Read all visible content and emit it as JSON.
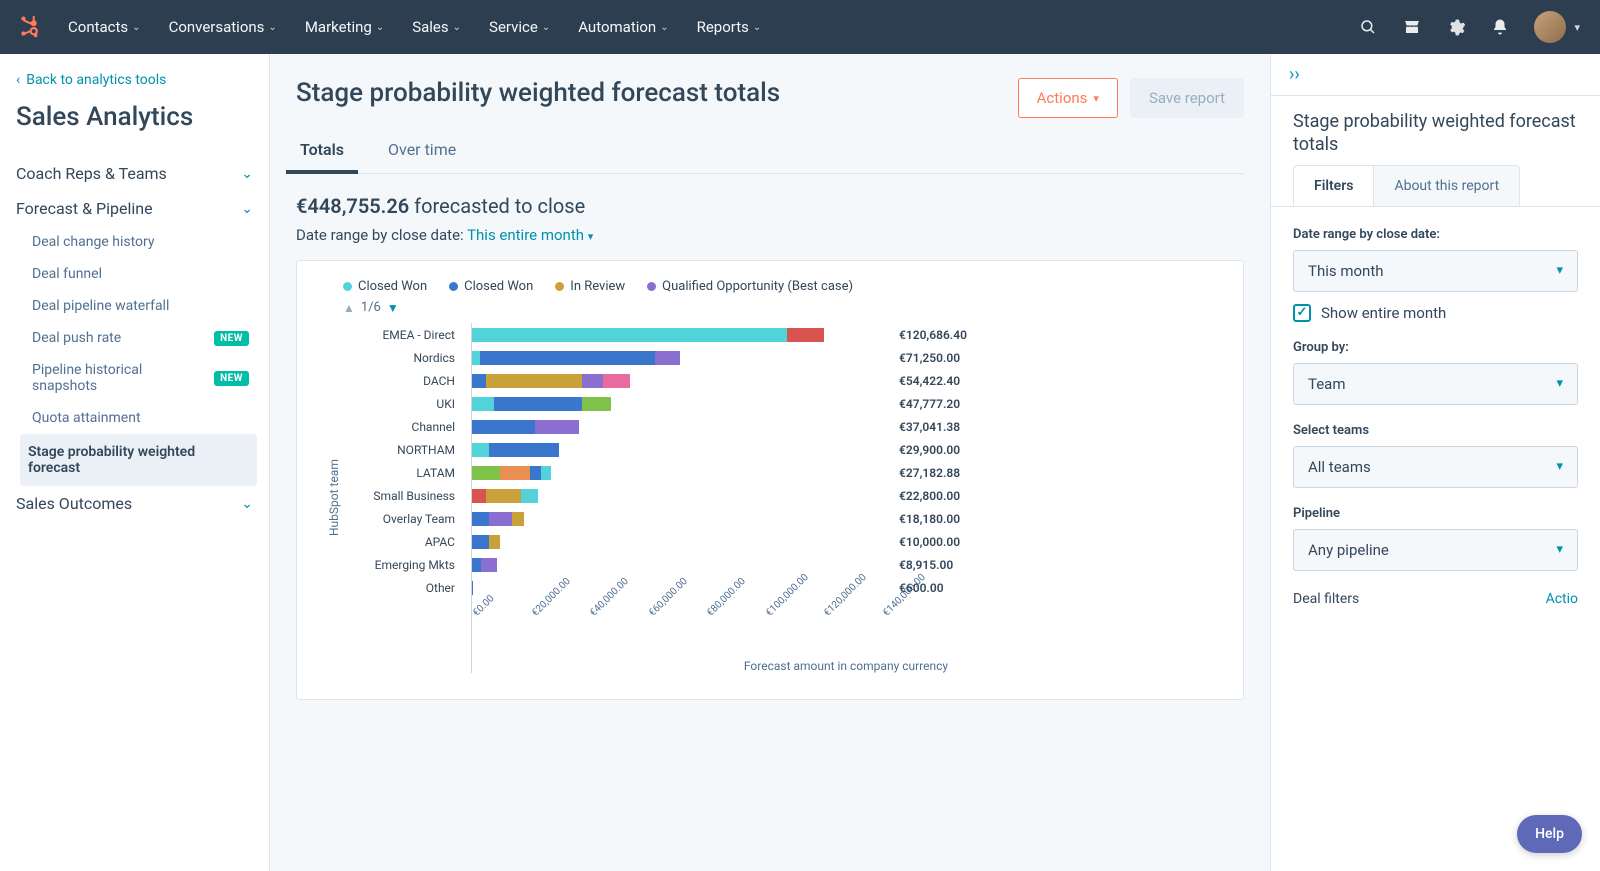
{
  "topnav": {
    "items": [
      "Contacts",
      "Conversations",
      "Marketing",
      "Sales",
      "Service",
      "Automation",
      "Reports"
    ]
  },
  "sidebar": {
    "back_label": "Back to analytics tools",
    "page_title": "Sales Analytics",
    "groups": [
      {
        "label": "Coach Reps & Teams",
        "open": false,
        "items": []
      },
      {
        "label": "Forecast & Pipeline",
        "open": true,
        "items": [
          {
            "label": "Deal change history",
            "new": false,
            "active": false
          },
          {
            "label": "Deal funnel",
            "new": false,
            "active": false
          },
          {
            "label": "Deal pipeline waterfall",
            "new": false,
            "active": false
          },
          {
            "label": "Deal push rate",
            "new": true,
            "active": false
          },
          {
            "label": "Pipeline historical snapshots",
            "new": true,
            "active": false
          },
          {
            "label": "Quota attainment",
            "new": false,
            "active": false
          },
          {
            "label": "Stage probability weighted forecast",
            "new": false,
            "active": true
          }
        ]
      },
      {
        "label": "Sales Outcomes",
        "open": false,
        "items": []
      }
    ],
    "new_badge_text": "NEW"
  },
  "main": {
    "report_title": "Stage probability weighted forecast totals",
    "actions_btn": "Actions",
    "save_btn": "Save report",
    "tabs": [
      {
        "label": "Totals",
        "active": true
      },
      {
        "label": "Over time",
        "active": false
      }
    ],
    "summary_value": "€448,755.26",
    "summary_suffix": " forecasted to close",
    "date_label": "Date range by close date: ",
    "date_value": "This entire month"
  },
  "chart": {
    "legend": [
      {
        "label": "Closed Won",
        "color": "#51d3d9"
      },
      {
        "label": "Closed Won",
        "color": "#3a77cc"
      },
      {
        "label": "In Review",
        "color": "#c9a13a"
      },
      {
        "label": "Qualified Opportunity (Best case)",
        "color": "#8a6fd1"
      }
    ],
    "pager": "1/6",
    "y_axis_label": "HubSpot team",
    "x_axis_label": "Forecast amount in company currency",
    "x_max": 140000,
    "x_ticks": [
      "€0.00",
      "€20,000.00",
      "€40,000.00",
      "€60,000.00",
      "€80,000.00",
      "€100,000.00",
      "€120,000.00",
      "€140,000.00"
    ],
    "colors": {
      "teal": "#51d3d9",
      "blue": "#3a77cc",
      "gold": "#c9a13a",
      "purple": "#8a6fd1",
      "orange": "#e98f53",
      "red": "#d9534f",
      "green": "#7fc24a",
      "pink": "#e76aa1"
    },
    "rows": [
      {
        "label": "EMEA - Direct",
        "value_label": "€120,686.40",
        "segments": [
          {
            "c": "teal",
            "v": 108000
          },
          {
            "c": "red",
            "v": 12686
          }
        ]
      },
      {
        "label": "Nordics",
        "value_label": "€71,250.00",
        "segments": [
          {
            "c": "teal",
            "v": 3000
          },
          {
            "c": "blue",
            "v": 60000
          },
          {
            "c": "purple",
            "v": 8250
          }
        ]
      },
      {
        "label": "DACH",
        "value_label": "€54,422.40",
        "segments": [
          {
            "c": "blue",
            "v": 5000
          },
          {
            "c": "gold",
            "v": 33000
          },
          {
            "c": "purple",
            "v": 7000
          },
          {
            "c": "pink",
            "v": 9422
          }
        ]
      },
      {
        "label": "UKI",
        "value_label": "€47,777.20",
        "segments": [
          {
            "c": "teal",
            "v": 8000
          },
          {
            "c": "blue",
            "v": 30000
          },
          {
            "c": "green",
            "v": 9777
          }
        ]
      },
      {
        "label": "Channel",
        "value_label": "€37,041.38",
        "segments": [
          {
            "c": "blue",
            "v": 22000
          },
          {
            "c": "purple",
            "v": 15041
          }
        ]
      },
      {
        "label": "NORTHAM",
        "value_label": "€29,900.00",
        "segments": [
          {
            "c": "teal",
            "v": 6000
          },
          {
            "c": "blue",
            "v": 23900
          }
        ]
      },
      {
        "label": "LATAM",
        "value_label": "€27,182.88",
        "segments": [
          {
            "c": "green",
            "v": 10000
          },
          {
            "c": "orange",
            "v": 10000
          },
          {
            "c": "blue",
            "v": 4000
          },
          {
            "c": "teal",
            "v": 3183
          }
        ]
      },
      {
        "label": "Small Business",
        "value_label": "€22,800.00",
        "segments": [
          {
            "c": "red",
            "v": 5000
          },
          {
            "c": "gold",
            "v": 12000
          },
          {
            "c": "teal",
            "v": 5800
          }
        ]
      },
      {
        "label": "Overlay Team",
        "value_label": "€18,180.00",
        "segments": [
          {
            "c": "blue",
            "v": 6000
          },
          {
            "c": "purple",
            "v": 8000
          },
          {
            "c": "gold",
            "v": 4180
          }
        ]
      },
      {
        "label": "APAC",
        "value_label": "€10,000.00",
        "segments": [
          {
            "c": "blue",
            "v": 6000
          },
          {
            "c": "gold",
            "v": 4000
          }
        ]
      },
      {
        "label": "Emerging Mkts",
        "value_label": "€8,915.00",
        "segments": [
          {
            "c": "blue",
            "v": 3500
          },
          {
            "c": "purple",
            "v": 5415
          }
        ]
      },
      {
        "label": "Other",
        "value_label": "€600.00",
        "segments": [
          {
            "c": "blue",
            "v": 600
          }
        ]
      }
    ]
  },
  "right_panel": {
    "title": "Stage probability weighted forecast totals",
    "tabs": [
      {
        "label": "Filters",
        "active": true
      },
      {
        "label": "About this report",
        "active": false
      }
    ],
    "filters": {
      "date_label": "Date range by close date:",
      "date_value": "This month",
      "show_entire_label": "Show entire month",
      "show_entire_checked": true,
      "group_by_label": "Group by:",
      "group_by_value": "Team",
      "select_teams_label": "Select teams",
      "select_teams_value": "All teams",
      "pipeline_label": "Pipeline",
      "pipeline_value": "Any pipeline",
      "deal_filters_label": "Deal filters",
      "deal_filters_action": "Actio"
    }
  },
  "help_label": "Help"
}
